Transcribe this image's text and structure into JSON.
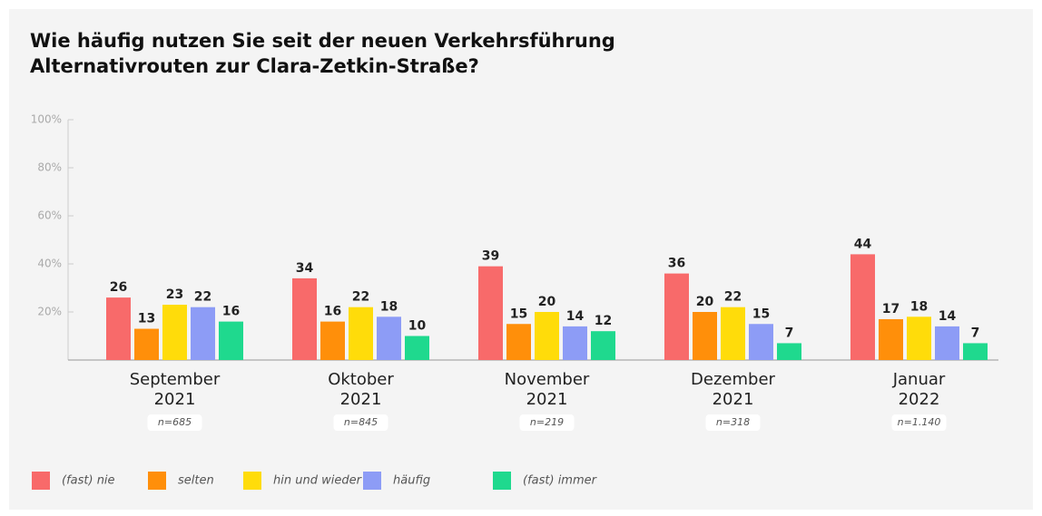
{
  "chart_data": {
    "type": "bar",
    "title": [
      "Wie häufig nutzen Sie seit der neuen Verkehrsführung",
      "Alternativrouten zur Clara-Zetkin-Straße?"
    ],
    "categories": [
      [
        "September",
        "2021"
      ],
      [
        "Oktober",
        "2021"
      ],
      [
        "November",
        "2021"
      ],
      [
        "Dezember",
        "2021"
      ],
      [
        "Januar",
        "2022"
      ]
    ],
    "sample_sizes": [
      "n=685",
      "n=845",
      "n=219",
      "n=318",
      "n=1.140"
    ],
    "series": [
      {
        "name": "(fast) nie",
        "color": "#f86a6a",
        "values": [
          26,
          34,
          39,
          36,
          44
        ]
      },
      {
        "name": "selten",
        "color": "#ff8f0a",
        "values": [
          13,
          16,
          15,
          20,
          17
        ]
      },
      {
        "name": "hin und wieder",
        "color": "#ffdc0a",
        "values": [
          23,
          22,
          20,
          22,
          18
        ]
      },
      {
        "name": "häufig",
        "color": "#8d9cf6",
        "values": [
          22,
          18,
          14,
          15,
          14
        ]
      },
      {
        "name": "(fast) immer",
        "color": "#1fd98e",
        "values": [
          16,
          10,
          12,
          7,
          7
        ]
      }
    ],
    "ylim": [
      0,
      100
    ],
    "yticks": [
      {
        "value": 20,
        "label": "20%"
      },
      {
        "value": 40,
        "label": "40%"
      },
      {
        "value": 60,
        "label": "60%"
      },
      {
        "value": 80,
        "label": "80%"
      },
      {
        "value": 100,
        "label": "100%"
      }
    ],
    "legend": "bottom"
  }
}
